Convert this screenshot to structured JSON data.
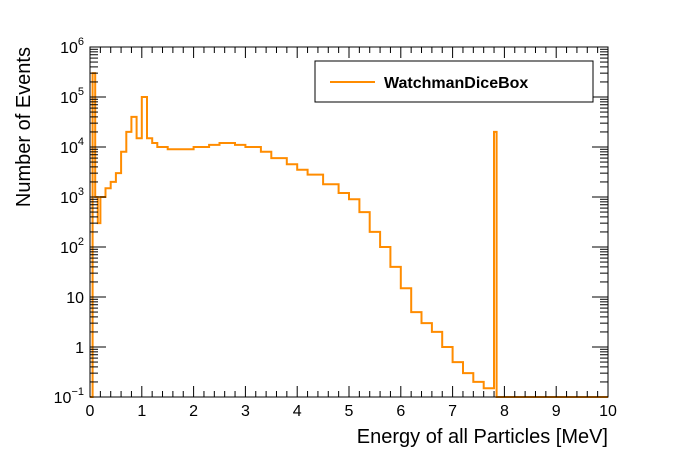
{
  "chart_data": {
    "type": "line",
    "title": "",
    "xlabel": "Energy of all Particles [MeV]",
    "ylabel": "Number of Events",
    "xlim": [
      0,
      10
    ],
    "ylim": [
      0.1,
      1000000
    ],
    "yscale": "log",
    "x_ticks": [
      "0",
      "1",
      "2",
      "3",
      "4",
      "5",
      "6",
      "7",
      "8",
      "9",
      "10"
    ],
    "y_ticks": [
      {
        "base": "10",
        "exp": "−1"
      },
      {
        "base": "1",
        "exp": ""
      },
      {
        "base": "10",
        "exp": ""
      },
      {
        "base": "10",
        "exp": "2"
      },
      {
        "base": "10",
        "exp": "3"
      },
      {
        "base": "10",
        "exp": "4"
      },
      {
        "base": "10",
        "exp": "5"
      },
      {
        "base": "10",
        "exp": "6"
      }
    ],
    "legend_position": "top-right",
    "grid": false,
    "series": [
      {
        "name": "WatchmanDiceBox",
        "color": "#ff8c00",
        "drawstyle": "steps",
        "x": [
          0.0,
          0.05,
          0.1,
          0.15,
          0.2,
          0.3,
          0.4,
          0.5,
          0.6,
          0.7,
          0.8,
          0.9,
          1.0,
          1.1,
          1.2,
          1.3,
          1.5,
          1.7,
          2.0,
          2.3,
          2.5,
          2.8,
          3.0,
          3.3,
          3.5,
          3.8,
          4.0,
          4.2,
          4.5,
          4.8,
          5.0,
          5.2,
          5.4,
          5.6,
          5.8,
          6.0,
          6.2,
          6.4,
          6.6,
          6.8,
          7.0,
          7.2,
          7.4,
          7.6,
          7.8,
          7.85,
          7.9,
          8.0,
          9.0,
          10.0
        ],
        "y": [
          0.1,
          300000,
          1000,
          300,
          1000,
          1500,
          2000,
          3000,
          8000,
          20000,
          40000,
          15000,
          100000,
          15000,
          12000,
          10000,
          9000,
          9000,
          10000,
          11000,
          12000,
          11000,
          10000,
          8000,
          6000,
          4500,
          3500,
          2800,
          1800,
          1200,
          900,
          500,
          200,
          100,
          40,
          15,
          5,
          3,
          2,
          1,
          0.5,
          0.3,
          0.2,
          0.15,
          20000,
          0.1,
          0.1,
          0.1,
          0.1,
          0.1
        ]
      }
    ]
  }
}
